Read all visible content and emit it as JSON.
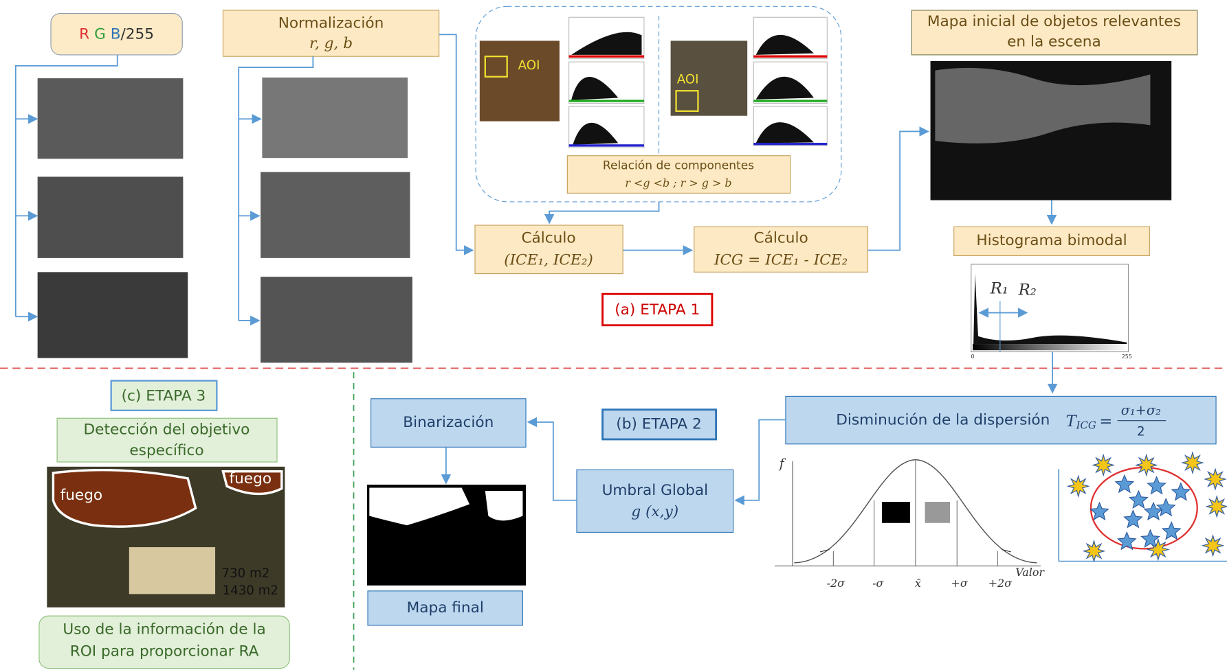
{
  "rgb_box": {
    "r": "R",
    "g": "G",
    "b": "B",
    "suffix": "/255"
  },
  "normalization": {
    "title": "Normalización",
    "formula": "r, g, b"
  },
  "aoi_panel": {
    "aoi_left": "AOI",
    "aoi_right": "AOI",
    "relation_title": "Relación de componentes",
    "relation_formula": "r <g <b ; r > g > b"
  },
  "calc1": {
    "title": "Cálculo",
    "formula": "(ICE₁, ICE₂)"
  },
  "calc2": {
    "title": "Cálculo",
    "formula": "ICG = ICE₁ - ICE₂"
  },
  "initial_map": {
    "line1": "Mapa inicial de objetos relevantes",
    "line2": "en la escena"
  },
  "histogram": {
    "title": "Histograma bimodal",
    "r1": "R₁",
    "r2": "R₂",
    "min": "0",
    "max": "255"
  },
  "stage1": "(a) ETAPA 1",
  "stage2": "(b) ETAPA 2",
  "stage3": "(c) ETAPA 3",
  "detection": {
    "line1": "Detección del objetivo",
    "line2": "específico"
  },
  "result_photo": {
    "fire1": "fuego",
    "fire2": "fuego",
    "area1": "730 m2",
    "area2": "1430 m2"
  },
  "usage": {
    "line1": "Uso de la información de la",
    "line2": "ROI  para proporcionar RA"
  },
  "binarization": "Binarización",
  "final_map": "Mapa final",
  "dispersion": {
    "text": "Disminución de la dispersión",
    "formula_lhs": "T",
    "formula_sub": "ICG",
    "formula_num": "σ₁+σ₂",
    "formula_den": "2"
  },
  "global_threshold": {
    "title": "Umbral Global",
    "formula": "g (x,y)"
  },
  "gaussian": {
    "y_label": "f",
    "x_label": "Valor",
    "ticks": [
      "-2σ",
      "-σ",
      "x̄",
      "+σ",
      "+2σ"
    ]
  }
}
